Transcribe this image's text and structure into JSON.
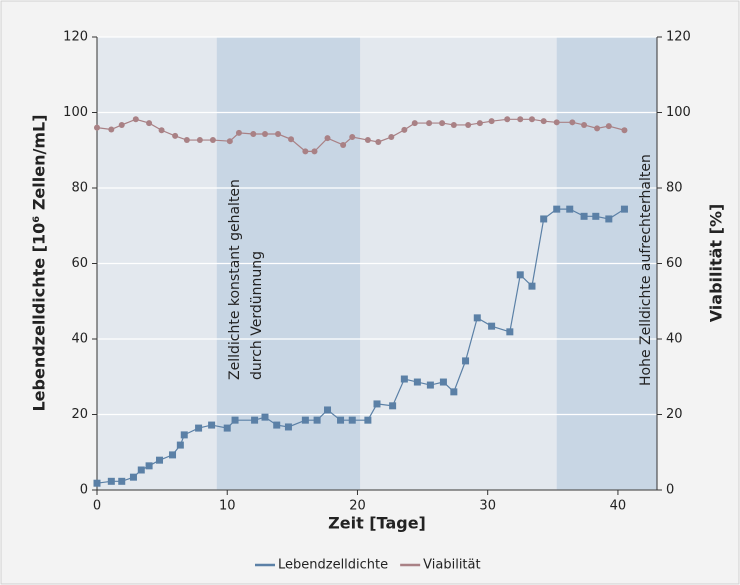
{
  "chart_data": {
    "type": "line",
    "xlabel": "Zeit [Tage]",
    "ylabel": "Lebendzelldichte [10⁶ Zellen/mL]",
    "y2label": "Viabilität [%]",
    "xlim": [
      0,
      43
    ],
    "xticks": [
      0,
      10,
      20,
      30,
      40
    ],
    "ylim": [
      0,
      120
    ],
    "yticks": [
      0,
      20,
      40,
      60,
      80,
      100,
      120
    ],
    "y2lim": [
      0,
      120
    ],
    "y2ticks": [
      0,
      20,
      40,
      60,
      80,
      100,
      120
    ],
    "grid": true,
    "legend": "bottom",
    "shaded_regions": [
      [
        9.2,
        20.2
      ],
      [
        35.3,
        43
      ]
    ],
    "annotations": [
      [
        "Zelldichte konstant gehalten",
        "durch Verdünnung"
      ],
      [
        "Hohe Zelldichte aufrechterhalten"
      ]
    ],
    "series": [
      {
        "name": "Lebendzelldichte",
        "color": "#5b80a6",
        "marker": "square",
        "x": [
          0,
          1.1,
          1.9,
          2.8,
          3.4,
          4.0,
          4.8,
          5.8,
          6.4,
          6.7,
          7.8,
          8.8,
          10,
          10.6,
          12.1,
          12.9,
          13.8,
          14.7,
          16,
          16.9,
          17.7,
          18.7,
          19.6,
          20.8,
          21.5,
          22.7,
          23.6,
          24.6,
          25.6,
          26.6,
          27.4,
          28.3,
          29.2,
          30.3,
          31.7,
          32.5,
          33.4,
          34.3,
          35.3,
          36.3,
          37.4,
          38.3,
          39.3,
          40.5
        ],
        "values": [
          1.8,
          2.3,
          2.3,
          3.4,
          5.3,
          6.4,
          7.9,
          9.3,
          11.9,
          14.6,
          16.4,
          17.2,
          16.4,
          18.5,
          18.5,
          19.3,
          17.2,
          16.7,
          18.5,
          18.5,
          21.2,
          18.5,
          18.5,
          18.5,
          22.8,
          22.3,
          29.4,
          28.6,
          27.8,
          28.6,
          26,
          34.2,
          45.6,
          43.4,
          41.9,
          57,
          54,
          71.8,
          74.4,
          74.4,
          72.5,
          72.5,
          71.8,
          74.4
        ]
      },
      {
        "name": "Viabilität",
        "color": "#a98185",
        "marker": "circle",
        "axis": "y2",
        "x": [
          0,
          1.1,
          1.9,
          2.98,
          4.0,
          4.96,
          6.0,
          6.9,
          7.9,
          8.9,
          10.2,
          10.9,
          12.0,
          12.9,
          13.9,
          14.9,
          16.0,
          16.7,
          17.7,
          18.9,
          19.6,
          20.8,
          21.6,
          22.6,
          23.6,
          24.4,
          25.5,
          26.5,
          27.4,
          28.5,
          29.4,
          30.3,
          31.5,
          32.5,
          33.4,
          34.3,
          35.3,
          36.5,
          37.4,
          38.4,
          39.3,
          40.5
        ],
        "values": [
          96,
          95.5,
          96.7,
          98.2,
          97.2,
          95.3,
          93.8,
          92.7,
          92.7,
          92.7,
          92.4,
          94.6,
          94.3,
          94.3,
          94.3,
          92.9,
          89.7,
          89.7,
          93.2,
          91.4,
          93.5,
          92.7,
          92.2,
          93.5,
          95.4,
          97.2,
          97.2,
          97.2,
          96.7,
          96.7,
          97.2,
          97.7,
          98.2,
          98.2,
          98.2,
          97.7,
          97.4,
          97.4,
          96.7,
          95.8,
          96.4,
          95.3
        ]
      }
    ]
  }
}
